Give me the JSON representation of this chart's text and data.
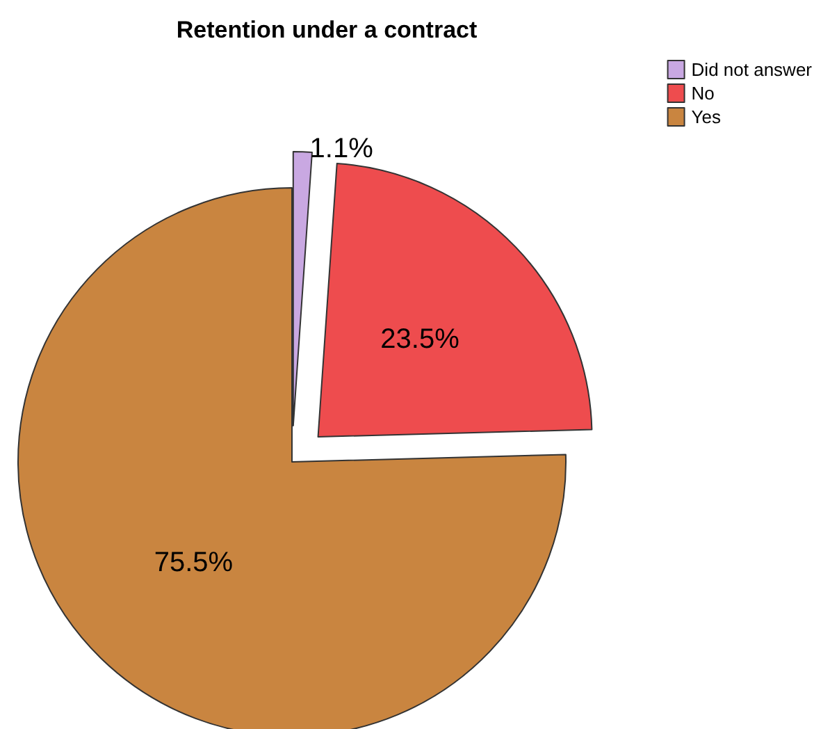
{
  "chart_data": {
    "type": "pie",
    "title": "Retention under a contract",
    "categories": [
      "Did not answer",
      "No",
      "Yes"
    ],
    "values": [
      1.1,
      23.5,
      75.5
    ],
    "colors": [
      "#c9a8e2",
      "#ee4c4e",
      "#c98540"
    ],
    "value_labels": [
      "1.1%",
      "23.5%",
      "75.5%"
    ],
    "legend": "top right"
  }
}
